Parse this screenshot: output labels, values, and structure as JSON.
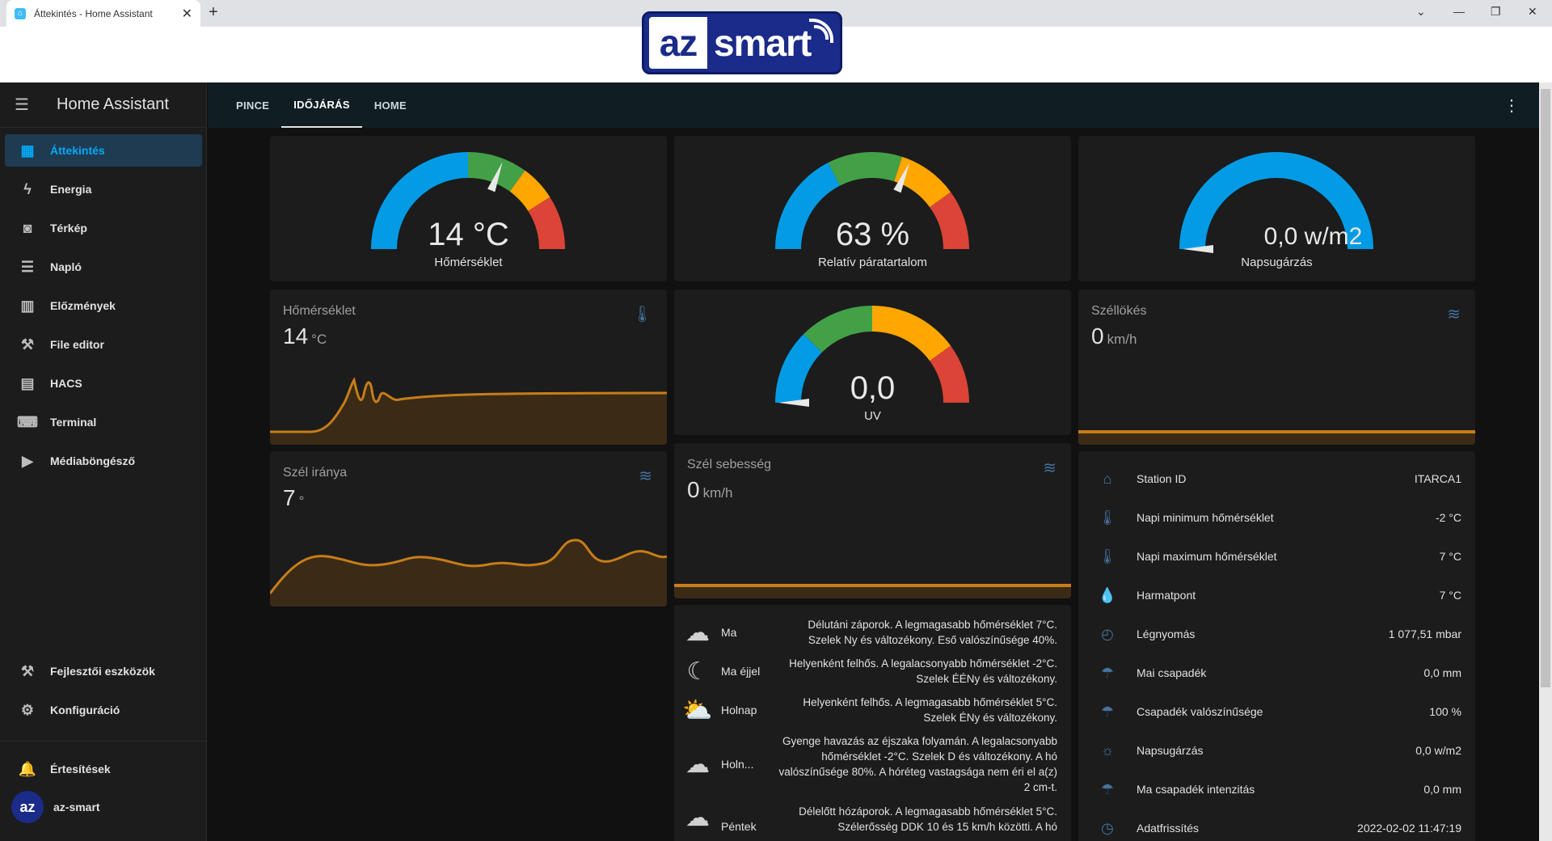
{
  "browser": {
    "tab_title": "Áttekintés - Home Assistant",
    "new_tab": "+",
    "close": "✕",
    "logo_az": "az",
    "logo_smart": "smart"
  },
  "sidebar": {
    "title": "Home Assistant",
    "items": [
      {
        "label": "Áttekintés",
        "icon": "dashboard-icon",
        "active": true
      },
      {
        "label": "Energia",
        "icon": "lightning-icon"
      },
      {
        "label": "Térkép",
        "icon": "map-account-icon"
      },
      {
        "label": "Napló",
        "icon": "list-icon"
      },
      {
        "label": "Előzmények",
        "icon": "chart-box-icon"
      },
      {
        "label": "File editor",
        "icon": "wrench-icon"
      },
      {
        "label": "HACS",
        "icon": "hacs-icon"
      },
      {
        "label": "Terminal",
        "icon": "console-icon"
      },
      {
        "label": "Médiaböngésző",
        "icon": "play-box-icon"
      }
    ],
    "dev_tools": "Fejlesztői eszközök",
    "config": "Konfiguráció",
    "notifications": "Értesítések",
    "user": "az-smart",
    "user_initials": "az"
  },
  "appbar": {
    "tabs": [
      "PINCE",
      "IDŐJÁRÁS",
      "HOME"
    ],
    "active_tab": "IDŐJÁRÁS"
  },
  "gauges": [
    {
      "value": "14 °C",
      "label": "Hőmérséklet",
      "needle": 0.62
    },
    {
      "value": "63 %",
      "label": "Relatív páratartalom",
      "needle": 0.63
    },
    {
      "value": "0,0 w/m2",
      "label": "Napsugárzás",
      "needle": 0.0
    },
    {
      "value": "0,0",
      "label": "UV",
      "needle": 0.0
    }
  ],
  "sensors": {
    "temp": {
      "name": "Hőmérséklet",
      "value": "14",
      "unit": "°C",
      "icon": "thermometer-icon"
    },
    "gust": {
      "name": "Széllökés",
      "value": "0",
      "unit": "km/h",
      "icon": "weather-windy-icon"
    },
    "wind_dir": {
      "name": "Szél iránya",
      "value": "7",
      "unit": "°",
      "icon": "weather-windy-icon"
    },
    "wind_speed": {
      "name": "Szél sebesség",
      "value": "0",
      "unit": "km/h",
      "icon": "weather-windy-icon"
    }
  },
  "entities": [
    {
      "name": "Station ID",
      "value": "ITARCA1",
      "icon": "home-icon"
    },
    {
      "name": "Napi minimum hőmérséklet",
      "value": "-2 °C",
      "icon": "thermometer-icon"
    },
    {
      "name": "Napi maximum hőmérséklet",
      "value": "7 °C",
      "icon": "thermometer-icon"
    },
    {
      "name": "Harmatpont",
      "value": "7 °C",
      "icon": "water-drop-icon"
    },
    {
      "name": "Légnyomás",
      "value": "1 077,51 mbar",
      "icon": "gauge-icon"
    },
    {
      "name": "Mai csapadék",
      "value": "0,0 mm",
      "icon": "umbrella-icon"
    },
    {
      "name": "Csapadék valószínűsége",
      "value": "100 %",
      "icon": "umbrella-icon"
    },
    {
      "name": "Napsugárzás",
      "value": "0,0 w/m2",
      "icon": "sun-icon"
    },
    {
      "name": "Ma csapadék intenzitás",
      "value": "0,0 mm",
      "icon": "umbrella-icon"
    },
    {
      "name": "Adatfrissítés",
      "value": "2022-02-02 11:47:19",
      "icon": "clock-icon"
    }
  ],
  "forecast": [
    {
      "day": "Ma",
      "icon": "rain-cloud-icon",
      "glyph": "☁",
      "text": "Délutáni záporok. A legmagasabb hőmérséklet 7°C. Szelek Ny és változékony. Eső valószínűsége 40%."
    },
    {
      "day": "Ma éjjel",
      "icon": "night-cloud-icon",
      "glyph": "☾",
      "text": "Helyenként felhős. A legalacsonyabb hőmérséklet -2°C. Szelek ÉÉNy és változékony."
    },
    {
      "day": "Holnap",
      "icon": "partly-sunny-icon",
      "glyph": "⛅",
      "text": "Helyenként felhős. A legmagasabb hőmérséklet 5°C. Szelek ÉNy és változékony."
    },
    {
      "day": "Holn...",
      "icon": "snow-cloud-icon",
      "glyph": "☁",
      "text": "Gyenge havazás az éjszaka folyamán. A legalacsonyabb hőmérséklet -2°C. Szelek D és változékony. A hó valószínűsége 80%. A hóréteg vastagsága nem éri el a(z) 2 cm-t."
    },
    {
      "day": "Péntek",
      "icon": "snow-cloud-icon",
      "glyph": "☁",
      "text": "Délelőtt hózáporok. A legmagasabb hőmérséklet 5°C. Szélerősség DDK 10 és 15 km/h közötti. A hó"
    }
  ]
}
